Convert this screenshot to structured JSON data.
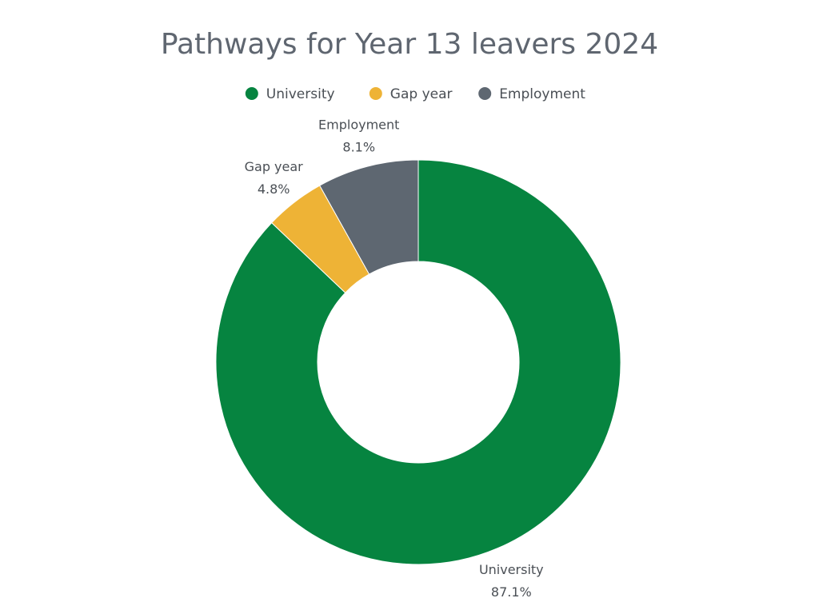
{
  "chart_data": {
    "type": "pie",
    "title": "Pathways for Year 13 leavers 2024",
    "donut": true,
    "legend_placement": "top",
    "categories": [
      "University",
      "Gap year",
      "Employment"
    ],
    "values": [
      87.1,
      4.8,
      8.1
    ],
    "value_labels": [
      "87.1%",
      "4.8%",
      "8.1%"
    ],
    "colors": [
      "#068440",
      "#eeb336",
      "#5e6771"
    ]
  }
}
